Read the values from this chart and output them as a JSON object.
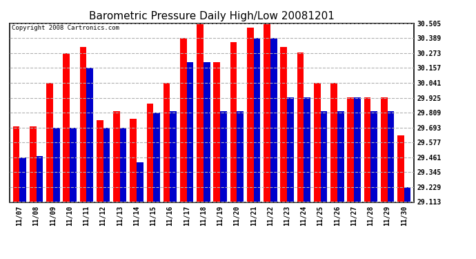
{
  "title": "Barometric Pressure Daily High/Low 20081201",
  "copyright": "Copyright 2008 Cartronics.com",
  "dates": [
    "11/07",
    "11/08",
    "11/09",
    "11/10",
    "11/11",
    "11/12",
    "11/13",
    "11/14",
    "11/15",
    "11/16",
    "11/17",
    "11/18",
    "11/19",
    "11/20",
    "11/21",
    "11/22",
    "11/23",
    "11/24",
    "11/25",
    "11/26",
    "11/27",
    "11/28",
    "11/29",
    "11/30"
  ],
  "highs": [
    29.7,
    29.7,
    30.04,
    30.27,
    30.32,
    29.75,
    29.82,
    29.76,
    29.88,
    30.04,
    30.39,
    30.51,
    30.2,
    30.36,
    30.47,
    30.51,
    30.32,
    30.28,
    30.04,
    30.04,
    29.93,
    29.93,
    29.93,
    29.63
  ],
  "lows": [
    29.46,
    29.47,
    29.69,
    29.69,
    30.16,
    29.69,
    29.69,
    29.42,
    29.81,
    29.82,
    30.2,
    30.2,
    29.82,
    29.82,
    30.39,
    30.39,
    29.93,
    29.93,
    29.82,
    29.82,
    29.93,
    29.82,
    29.82,
    29.23
  ],
  "ymin": 29.113,
  "ymax": 30.505,
  "yticks": [
    29.113,
    29.229,
    29.345,
    29.461,
    29.577,
    29.693,
    29.809,
    29.925,
    30.041,
    30.157,
    30.273,
    30.389,
    30.505
  ],
  "high_color": "#ff0000",
  "low_color": "#0000cc",
  "bg_color": "#ffffff",
  "grid_color": "#b0b0b0",
  "title_fontsize": 11,
  "copyright_fontsize": 6.5,
  "bar_width": 0.4
}
